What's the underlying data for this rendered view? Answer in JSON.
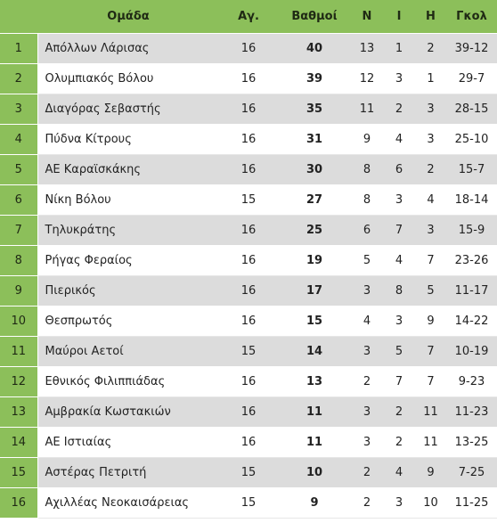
{
  "table": {
    "headers": {
      "pos": "",
      "team": "Ομάδα",
      "played": "Αγ.",
      "points": "Βαθμοί",
      "wins": "Ν",
      "draws": "Ι",
      "losses": "Η",
      "goals": "Γκολ"
    },
    "rows": [
      {
        "pos": "1",
        "team": "Απόλλων Λάρισας",
        "played": "16",
        "points": "40",
        "wins": "13",
        "draws": "1",
        "losses": "2",
        "goals": "39-12"
      },
      {
        "pos": "2",
        "team": "Ολυμπιακός Βόλου",
        "played": "16",
        "points": "39",
        "wins": "12",
        "draws": "3",
        "losses": "1",
        "goals": "29-7"
      },
      {
        "pos": "3",
        "team": "Διαγόρας Σεβαστής",
        "played": "16",
        "points": "35",
        "wins": "11",
        "draws": "2",
        "losses": "3",
        "goals": "28-15"
      },
      {
        "pos": "4",
        "team": "Πύδνα Κίτρους",
        "played": "16",
        "points": "31",
        "wins": "9",
        "draws": "4",
        "losses": "3",
        "goals": "25-10"
      },
      {
        "pos": "5",
        "team": "ΑΕ Καραϊσκάκης",
        "played": "16",
        "points": "30",
        "wins": "8",
        "draws": "6",
        "losses": "2",
        "goals": "15-7"
      },
      {
        "pos": "6",
        "team": "Νίκη Βόλου",
        "played": "15",
        "points": "27",
        "wins": "8",
        "draws": "3",
        "losses": "4",
        "goals": "18-14"
      },
      {
        "pos": "7",
        "team": "Τηλυκράτης",
        "played": "16",
        "points": "25",
        "wins": "6",
        "draws": "7",
        "losses": "3",
        "goals": "15-9"
      },
      {
        "pos": "8",
        "team": "Ρήγας Φεραίος",
        "played": "16",
        "points": "19",
        "wins": "5",
        "draws": "4",
        "losses": "7",
        "goals": "23-26"
      },
      {
        "pos": "9",
        "team": "Πιερικός",
        "played": "16",
        "points": "17",
        "wins": "3",
        "draws": "8",
        "losses": "5",
        "goals": "11-17"
      },
      {
        "pos": "10",
        "team": "Θεσπρωτός",
        "played": "16",
        "points": "15",
        "wins": "4",
        "draws": "3",
        "losses": "9",
        "goals": "14-22"
      },
      {
        "pos": "11",
        "team": "Μαύροι Αετοί",
        "played": "15",
        "points": "14",
        "wins": "3",
        "draws": "5",
        "losses": "7",
        "goals": "10-19"
      },
      {
        "pos": "12",
        "team": "Εθνικός Φιλιππιάδας",
        "played": "16",
        "points": "13",
        "wins": "2",
        "draws": "7",
        "losses": "7",
        "goals": "9-23"
      },
      {
        "pos": "13",
        "team": "Αμβρακία Κωστακιών",
        "played": "16",
        "points": "11",
        "wins": "3",
        "draws": "2",
        "losses": "11",
        "goals": "11-23"
      },
      {
        "pos": "14",
        "team": "ΑΕ Ιστιαίας",
        "played": "16",
        "points": "11",
        "wins": "3",
        "draws": "2",
        "losses": "11",
        "goals": "13-25"
      },
      {
        "pos": "15",
        "team": "Αστέρας Πετριτή",
        "played": "15",
        "points": "10",
        "wins": "2",
        "draws": "4",
        "losses": "9",
        "goals": "7-25"
      },
      {
        "pos": "16",
        "team": "Αχιλλέας Νεοκαισάρειας",
        "played": "15",
        "points": "9",
        "wins": "2",
        "draws": "3",
        "losses": "10",
        "goals": "11-25"
      }
    ]
  }
}
